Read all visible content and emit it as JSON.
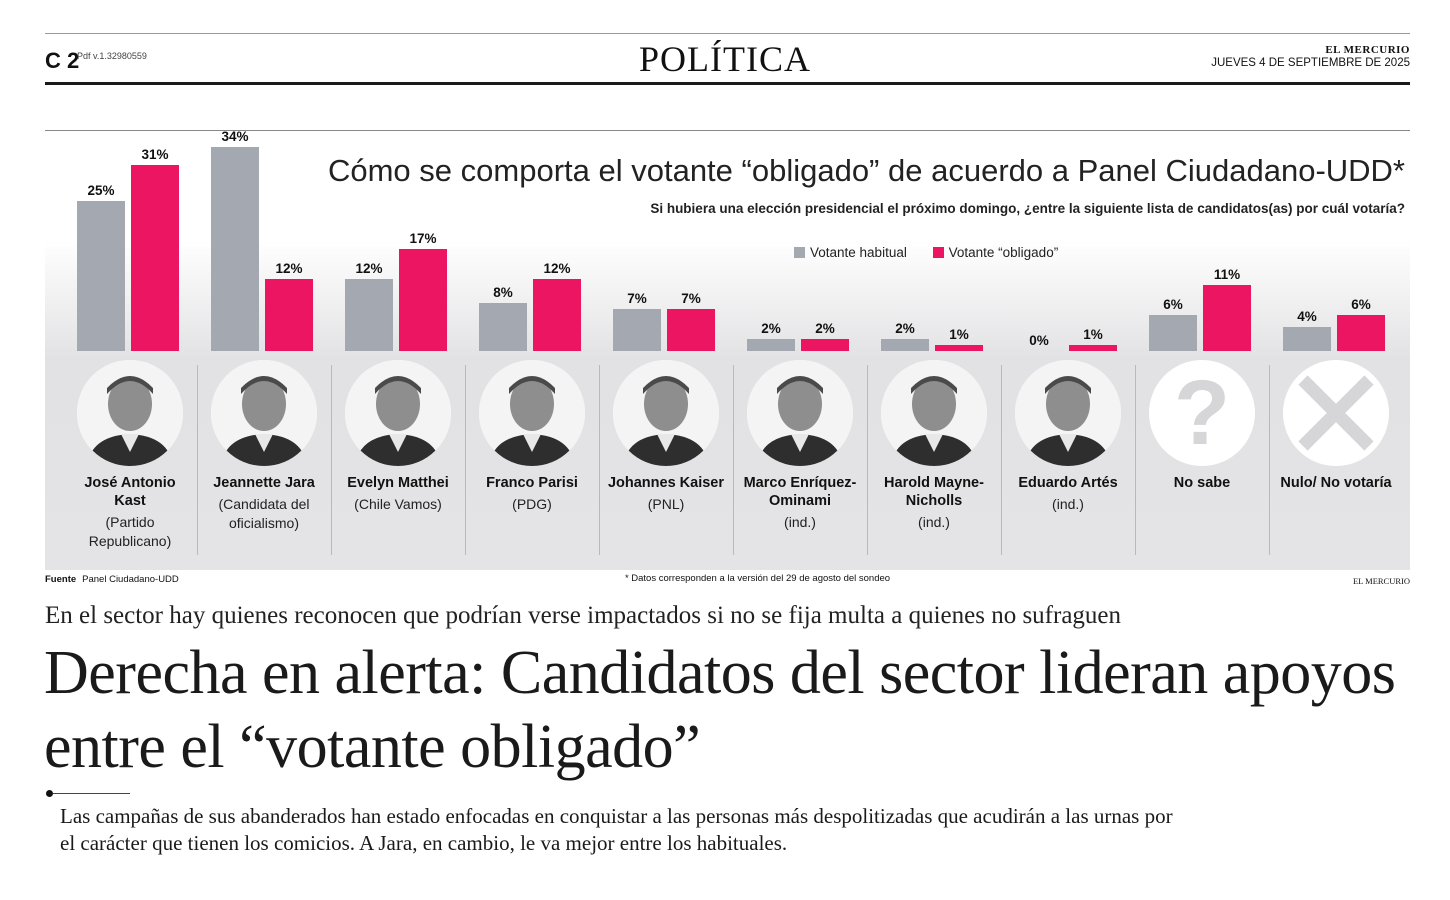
{
  "masthead": {
    "page": "C 2",
    "pdf_version": "Pdf v.1.32980559",
    "section": "POLÍTICA",
    "paper": "EL MERCURIO",
    "date": "JUEVES 4 DE SEPTIEMBRE DE 2025"
  },
  "chart_data": {
    "type": "bar",
    "title": "Cómo se comporta el votante “obligado” de acuerdo a Panel Ciudadano-UDD*",
    "subtitle": "Si hubiera una elección presidencial el próximo domingo, ¿entre la siguiente lista de candidatos(as) por cuál votaría?",
    "categories": [
      "José Antonio Kast",
      "Jeannette Jara",
      "Evelyn Matthei",
      "Franco Parisi",
      "Johannes Kaiser",
      "Marco Enríquez-Ominami",
      "Harold Mayne-Nicholls",
      "Eduardo Artés",
      "No sabe",
      "Nulo/ No votaría"
    ],
    "series": [
      {
        "name": "Votante habitual",
        "color": "#a4a9b1",
        "values": [
          25,
          34,
          12,
          8,
          7,
          2,
          2,
          0,
          6,
          4
        ]
      },
      {
        "name": "Votante “obligado”",
        "color": "#ec1562",
        "values": [
          31,
          12,
          17,
          12,
          7,
          2,
          1,
          1,
          11,
          6
        ]
      }
    ],
    "unit": "%",
    "ylim": [
      0,
      34
    ],
    "legend_position": "top-right",
    "grid": false
  },
  "candidates": [
    {
      "name": "José Antonio Kast",
      "party": "(Partido Republicano)",
      "photo": "portrait"
    },
    {
      "name": "Jeannette Jara",
      "party": "(Candidata del oficialismo)",
      "photo": "portrait"
    },
    {
      "name": "Evelyn Matthei",
      "party": "(Chile Vamos)",
      "photo": "portrait"
    },
    {
      "name": "Franco Parisi",
      "party": "(PDG)",
      "photo": "portrait"
    },
    {
      "name": "Johannes Kaiser",
      "party": "(PNL)",
      "photo": "portrait"
    },
    {
      "name": "Marco Enríquez-Ominami",
      "party": "(ind.)",
      "photo": "portrait"
    },
    {
      "name": "Harold Mayne-Nicholls",
      "party": "(ind.)",
      "photo": "portrait"
    },
    {
      "name": "Eduardo Artés",
      "party": "(ind.)",
      "photo": "portrait"
    },
    {
      "name": "No sabe",
      "party": "",
      "photo": "question-icon"
    },
    {
      "name": "Nulo/ No votaría",
      "party": "",
      "photo": "cross-icon"
    }
  ],
  "source": {
    "label": "Fuente",
    "text": "Panel Ciudadano-UDD"
  },
  "footnote": "* Datos corresponden a la versión del 29 de agosto del sondeo",
  "credit": "EL MERCURIO",
  "article": {
    "kicker": "En el sector hay quienes reconocen que podrían verse impactados si no se fija multa a quienes no sufraguen",
    "headline": "Derecha en alerta: Candidatos del sector lideran apoyos entre el “votante obligado”",
    "deck": "Las campañas de sus abanderados han estado enfocadas en conquistar a las personas más despolitizadas que acudirán a las urnas por el carácter que tienen los comicios. A Jara, en cambio, le va mejor entre los habituales."
  }
}
